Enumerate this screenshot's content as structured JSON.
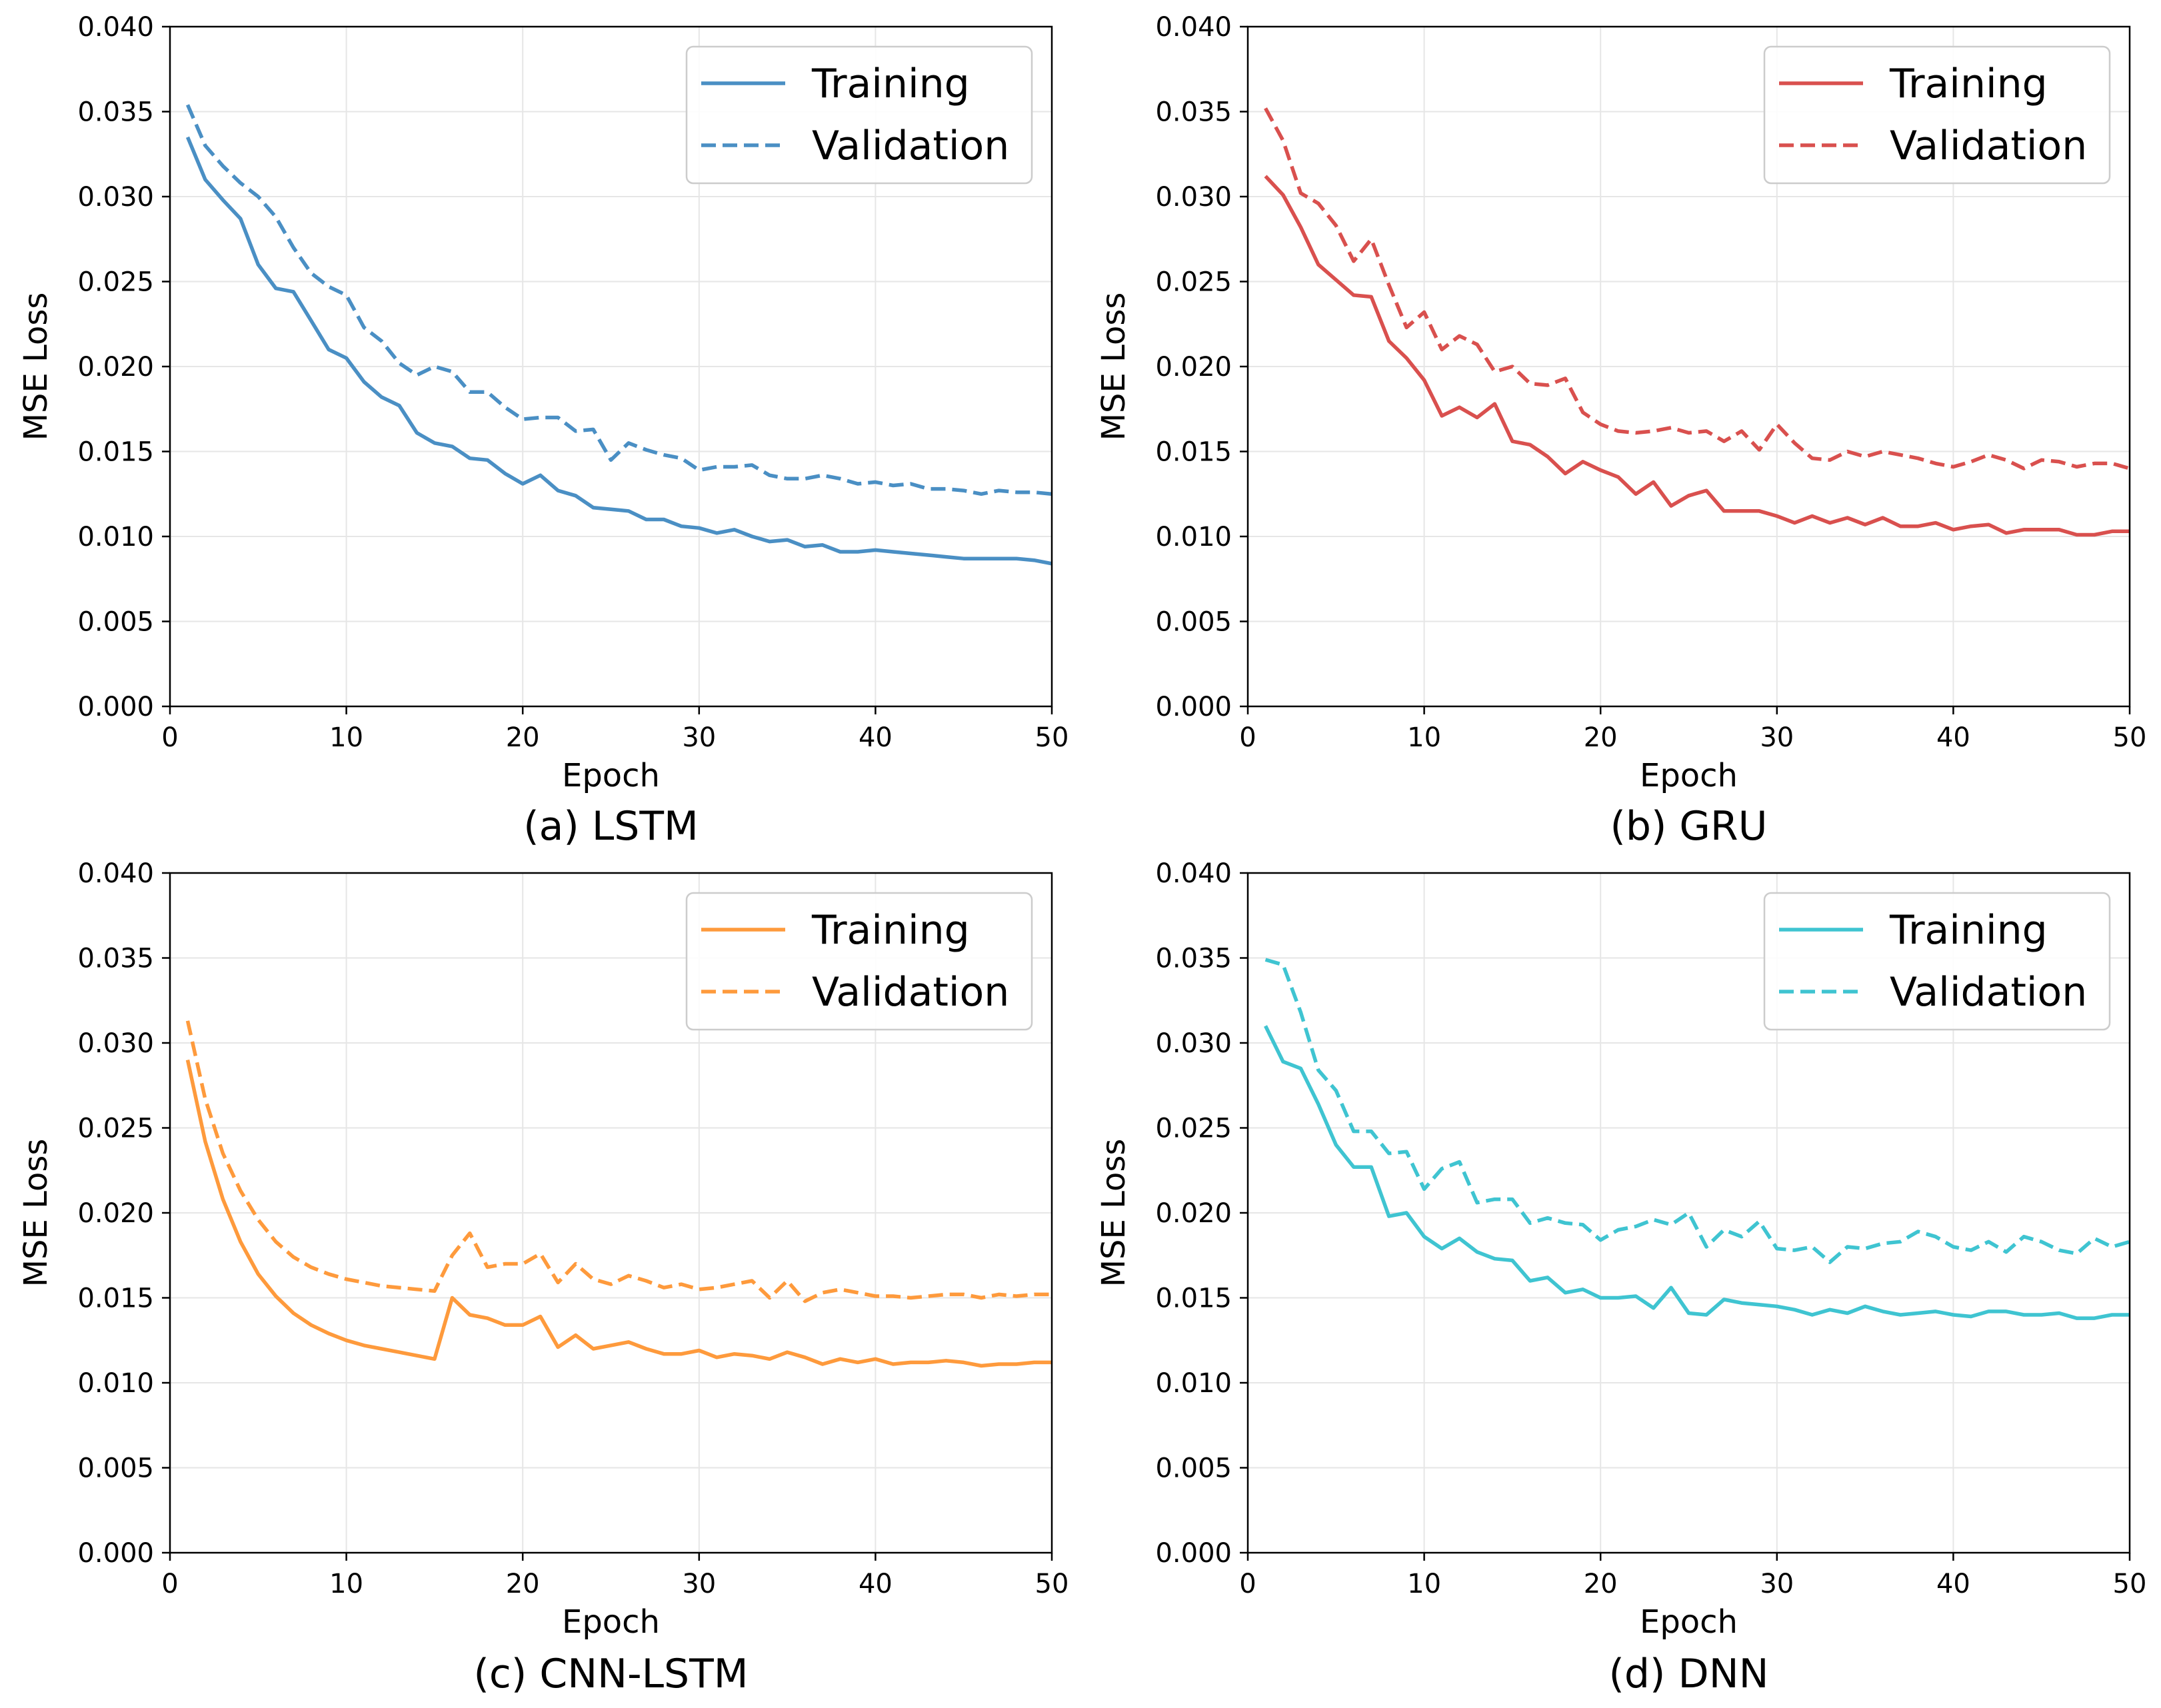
{
  "chart_data": [
    {
      "type": "line",
      "caption": "(a) LSTM",
      "color": "#4a8fc4",
      "xlabel": "Epoch",
      "ylabel": "MSE Loss",
      "xlim": [
        0,
        50
      ],
      "ylim": [
        0,
        0.04
      ],
      "xticks": [
        "0",
        "10",
        "20",
        "30",
        "40",
        "50"
      ],
      "yticks": [
        "0.000",
        "0.005",
        "0.010",
        "0.015",
        "0.020",
        "0.025",
        "0.030",
        "0.035",
        "0.040"
      ],
      "legend": {
        "placement": "top-right",
        "entries": [
          "Training",
          "Validation"
        ]
      },
      "series": [
        {
          "name": "Training",
          "style": "solid",
          "values": [
            0.0335,
            0.031,
            0.0298,
            0.0287,
            0.026,
            0.0246,
            0.0244,
            0.0227,
            0.021,
            0.0205,
            0.0191,
            0.0182,
            0.0177,
            0.0161,
            0.0155,
            0.0153,
            0.0146,
            0.0145,
            0.0137,
            0.0131,
            0.0136,
            0.0127,
            0.0124,
            0.0117,
            0.0116,
            0.0115,
            0.011,
            0.011,
            0.0106,
            0.0105,
            0.0102,
            0.0104,
            0.01,
            0.0097,
            0.0098,
            0.0094,
            0.0095,
            0.0091,
            0.0091,
            0.0092,
            0.0091,
            0.009,
            0.0089,
            0.0088,
            0.0087,
            0.0087,
            0.0087,
            0.0087,
            0.0086,
            0.0084
          ]
        },
        {
          "name": "Validation",
          "style": "dashed",
          "values": [
            0.0354,
            0.033,
            0.0318,
            0.0308,
            0.03,
            0.0288,
            0.027,
            0.0255,
            0.0247,
            0.0242,
            0.0223,
            0.0215,
            0.0202,
            0.0195,
            0.02,
            0.0197,
            0.0185,
            0.0185,
            0.0176,
            0.0169,
            0.017,
            0.017,
            0.0162,
            0.0163,
            0.0145,
            0.0155,
            0.0151,
            0.0148,
            0.0146,
            0.0139,
            0.0141,
            0.0141,
            0.0142,
            0.0136,
            0.0134,
            0.0134,
            0.0136,
            0.0134,
            0.0131,
            0.0132,
            0.013,
            0.0131,
            0.0128,
            0.0128,
            0.0127,
            0.0125,
            0.0127,
            0.0126,
            0.0126,
            0.0125
          ]
        }
      ]
    },
    {
      "type": "line",
      "caption": "(b) GRU",
      "color": "#d9504e",
      "xlabel": "Epoch",
      "ylabel": "MSE Loss",
      "xlim": [
        0,
        50
      ],
      "ylim": [
        0,
        0.04
      ],
      "xticks": [
        "0",
        "10",
        "20",
        "30",
        "40",
        "50"
      ],
      "yticks": [
        "0.000",
        "0.005",
        "0.010",
        "0.015",
        "0.020",
        "0.025",
        "0.030",
        "0.035",
        "0.040"
      ],
      "legend": {
        "placement": "top-right",
        "entries": [
          "Training",
          "Validation"
        ]
      },
      "series": [
        {
          "name": "Training",
          "style": "solid",
          "values": [
            0.0312,
            0.0301,
            0.0282,
            0.026,
            0.0251,
            0.0242,
            0.0241,
            0.0215,
            0.0205,
            0.0192,
            0.0171,
            0.0176,
            0.017,
            0.0178,
            0.0156,
            0.0154,
            0.0147,
            0.0137,
            0.0144,
            0.0139,
            0.0135,
            0.0125,
            0.0132,
            0.0118,
            0.0124,
            0.0127,
            0.0115,
            0.0115,
            0.0115,
            0.0112,
            0.0108,
            0.0112,
            0.0108,
            0.0111,
            0.0107,
            0.0111,
            0.0106,
            0.0106,
            0.0108,
            0.0104,
            0.0106,
            0.0107,
            0.0102,
            0.0104,
            0.0104,
            0.0104,
            0.0101,
            0.0101,
            0.0103,
            0.0103
          ]
        },
        {
          "name": "Validation",
          "style": "dashed",
          "values": [
            0.0352,
            0.0333,
            0.0302,
            0.0296,
            0.0283,
            0.0262,
            0.0275,
            0.0248,
            0.0223,
            0.0232,
            0.021,
            0.0218,
            0.0213,
            0.0197,
            0.02,
            0.019,
            0.0189,
            0.0193,
            0.0173,
            0.0166,
            0.0162,
            0.0161,
            0.0162,
            0.0164,
            0.0161,
            0.0162,
            0.0156,
            0.0162,
            0.0151,
            0.0166,
            0.0155,
            0.0146,
            0.0145,
            0.015,
            0.0147,
            0.015,
            0.0148,
            0.0146,
            0.0143,
            0.0141,
            0.0144,
            0.0148,
            0.0145,
            0.014,
            0.0145,
            0.0144,
            0.0141,
            0.0143,
            0.0143,
            0.014
          ]
        }
      ]
    },
    {
      "type": "line",
      "caption": "(c) CNN-LSTM",
      "color": "#fe9a3c",
      "xlabel": "Epoch",
      "ylabel": "MSE Loss",
      "xlim": [
        0,
        50
      ],
      "ylim": [
        0,
        0.04
      ],
      "xticks": [
        "0",
        "10",
        "20",
        "30",
        "40",
        "50"
      ],
      "yticks": [
        "0.000",
        "0.005",
        "0.010",
        "0.015",
        "0.020",
        "0.025",
        "0.030",
        "0.035",
        "0.040"
      ],
      "legend": {
        "placement": "top-right",
        "entries": [
          "Training",
          "Validation"
        ]
      },
      "series": [
        {
          "name": "Training",
          "style": "solid",
          "values": [
            0.029,
            0.0242,
            0.0208,
            0.0183,
            0.0164,
            0.0151,
            0.0141,
            0.0134,
            0.0129,
            0.0125,
            0.0122,
            0.012,
            0.0118,
            0.0116,
            0.0114,
            0.015,
            0.014,
            0.0138,
            0.0134,
            0.0134,
            0.0139,
            0.0121,
            0.0128,
            0.012,
            0.0122,
            0.0124,
            0.012,
            0.0117,
            0.0117,
            0.0119,
            0.0115,
            0.0117,
            0.0116,
            0.0114,
            0.0118,
            0.0115,
            0.0111,
            0.0114,
            0.0112,
            0.0114,
            0.0111,
            0.0112,
            0.0112,
            0.0113,
            0.0112,
            0.011,
            0.0111,
            0.0111,
            0.0112,
            0.0112
          ]
        },
        {
          "name": "Validation",
          "style": "dashed",
          "values": [
            0.0313,
            0.0267,
            0.0235,
            0.0213,
            0.0196,
            0.0183,
            0.0174,
            0.0168,
            0.0164,
            0.0161,
            0.0159,
            0.0157,
            0.0156,
            0.0155,
            0.0154,
            0.0175,
            0.0188,
            0.0168,
            0.017,
            0.017,
            0.0176,
            0.0159,
            0.017,
            0.0161,
            0.0158,
            0.0163,
            0.016,
            0.0156,
            0.0158,
            0.0155,
            0.0156,
            0.0158,
            0.016,
            0.015,
            0.016,
            0.0148,
            0.0153,
            0.0155,
            0.0153,
            0.0151,
            0.0151,
            0.015,
            0.0151,
            0.0152,
            0.0152,
            0.015,
            0.0152,
            0.0151,
            0.0152,
            0.0152
          ]
        }
      ]
    },
    {
      "type": "line",
      "caption": "(d) DNN",
      "color": "#3fc4d1",
      "xlabel": "Epoch",
      "ylabel": "MSE Loss",
      "xlim": [
        0,
        50
      ],
      "ylim": [
        0,
        0.04
      ],
      "xticks": [
        "0",
        "10",
        "20",
        "30",
        "40",
        "50"
      ],
      "yticks": [
        "0.000",
        "0.005",
        "0.010",
        "0.015",
        "0.020",
        "0.025",
        "0.030",
        "0.035",
        "0.040"
      ],
      "legend": {
        "placement": "top-right",
        "entries": [
          "Training",
          "Validation"
        ]
      },
      "series": [
        {
          "name": "Training",
          "style": "solid",
          "values": [
            0.031,
            0.0289,
            0.0285,
            0.0264,
            0.024,
            0.0227,
            0.0227,
            0.0198,
            0.02,
            0.0186,
            0.0179,
            0.0185,
            0.0177,
            0.0173,
            0.0172,
            0.016,
            0.0162,
            0.0153,
            0.0155,
            0.015,
            0.015,
            0.0151,
            0.0144,
            0.0156,
            0.0141,
            0.014,
            0.0149,
            0.0147,
            0.0146,
            0.0145,
            0.0143,
            0.014,
            0.0143,
            0.0141,
            0.0145,
            0.0142,
            0.014,
            0.0141,
            0.0142,
            0.014,
            0.0139,
            0.0142,
            0.0142,
            0.014,
            0.014,
            0.0141,
            0.0138,
            0.0138,
            0.014,
            0.014
          ]
        },
        {
          "name": "Validation",
          "style": "dashed",
          "values": [
            0.0349,
            0.0346,
            0.0318,
            0.0284,
            0.0272,
            0.0248,
            0.0248,
            0.0235,
            0.0236,
            0.0214,
            0.0226,
            0.023,
            0.0206,
            0.0208,
            0.0208,
            0.0194,
            0.0197,
            0.0194,
            0.0193,
            0.0184,
            0.019,
            0.0192,
            0.0196,
            0.0193,
            0.02,
            0.018,
            0.019,
            0.0186,
            0.0195,
            0.0179,
            0.0178,
            0.018,
            0.0171,
            0.018,
            0.0179,
            0.0182,
            0.0183,
            0.0189,
            0.0186,
            0.018,
            0.0178,
            0.0183,
            0.0177,
            0.0186,
            0.0183,
            0.0178,
            0.0176,
            0.0185,
            0.018,
            0.0183
          ]
        }
      ]
    }
  ]
}
